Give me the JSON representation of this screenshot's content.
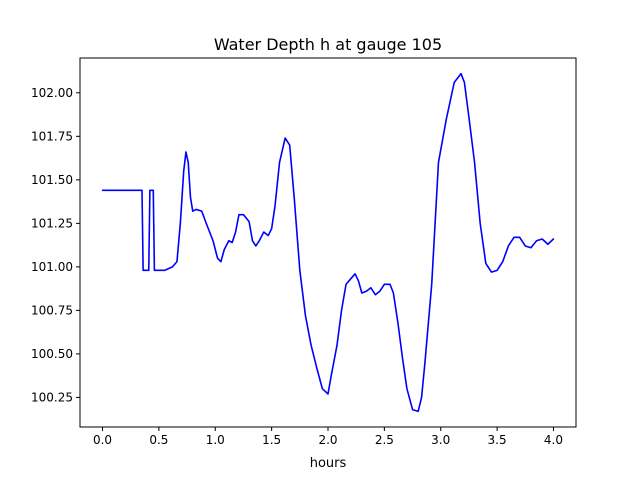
{
  "chart_data": {
    "type": "line",
    "title": "Water Depth h at gauge 105",
    "xlabel": "hours",
    "ylabel": "",
    "xlim": [
      -0.2,
      4.2
    ],
    "ylim": [
      100.08,
      102.2
    ],
    "xticks": [
      0.0,
      0.5,
      1.0,
      1.5,
      2.0,
      2.5,
      3.0,
      3.5,
      4.0
    ],
    "xtick_labels": [
      "0.0",
      "0.5",
      "1.0",
      "1.5",
      "2.0",
      "2.5",
      "3.0",
      "3.5",
      "4.0"
    ],
    "yticks": [
      100.25,
      100.5,
      100.75,
      101.0,
      101.25,
      101.5,
      101.75,
      102.0
    ],
    "ytick_labels": [
      "100.25",
      "100.50",
      "100.75",
      "101.00",
      "101.25",
      "101.50",
      "101.75",
      "102.00"
    ],
    "grid": false,
    "series": [
      {
        "color": "#0000ff",
        "x": [
          0.0,
          0.35,
          0.36,
          0.41,
          0.42,
          0.45,
          0.46,
          0.55,
          0.62,
          0.66,
          0.69,
          0.72,
          0.74,
          0.76,
          0.78,
          0.8,
          0.83,
          0.88,
          0.92,
          0.98,
          1.02,
          1.05,
          1.08,
          1.12,
          1.15,
          1.18,
          1.21,
          1.25,
          1.3,
          1.33,
          1.36,
          1.39,
          1.43,
          1.47,
          1.5,
          1.53,
          1.57,
          1.62,
          1.66,
          1.7,
          1.75,
          1.8,
          1.85,
          1.9,
          1.95,
          2.0,
          2.03,
          2.08,
          2.12,
          2.16,
          2.2,
          2.24,
          2.27,
          2.3,
          2.34,
          2.38,
          2.42,
          2.46,
          2.5,
          2.55,
          2.58,
          2.62,
          2.66,
          2.7,
          2.75,
          2.8,
          2.83,
          2.86,
          2.92,
          2.98,
          3.05,
          3.12,
          3.18,
          3.21,
          3.25,
          3.3,
          3.35,
          3.4,
          3.45,
          3.5,
          3.55,
          3.6,
          3.65,
          3.7,
          3.75,
          3.8,
          3.85,
          3.9,
          3.95,
          4.0
        ],
        "y": [
          101.44,
          101.44,
          100.98,
          100.98,
          101.44,
          101.44,
          100.98,
          100.98,
          101.0,
          101.03,
          101.25,
          101.55,
          101.66,
          101.6,
          101.4,
          101.32,
          101.33,
          101.32,
          101.25,
          101.15,
          101.05,
          101.03,
          101.1,
          101.15,
          101.14,
          101.2,
          101.3,
          101.3,
          101.26,
          101.15,
          101.12,
          101.15,
          101.2,
          101.18,
          101.22,
          101.35,
          101.6,
          101.74,
          101.7,
          101.4,
          100.98,
          100.72,
          100.55,
          100.42,
          100.3,
          100.27,
          100.38,
          100.55,
          100.75,
          100.9,
          100.93,
          100.96,
          100.92,
          100.85,
          100.86,
          100.88,
          100.84,
          100.86,
          100.9,
          100.9,
          100.85,
          100.68,
          100.48,
          100.3,
          100.18,
          100.17,
          100.25,
          100.45,
          100.9,
          101.6,
          101.85,
          102.06,
          102.11,
          102.06,
          101.86,
          101.6,
          101.25,
          101.02,
          100.97,
          100.98,
          101.03,
          101.12,
          101.17,
          101.17,
          101.12,
          101.11,
          101.15,
          101.16,
          101.13,
          101.16
        ]
      }
    ]
  }
}
